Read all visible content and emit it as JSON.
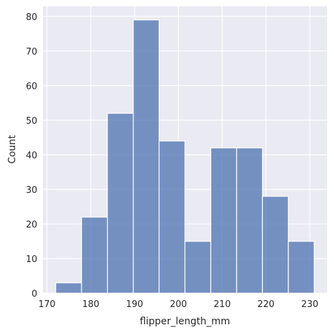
{
  "chart_data": {
    "type": "histogram",
    "x_label": "flipper_length_mm",
    "y_label": "Count",
    "bins": [
      172,
      177.9,
      183.8,
      189.7,
      195.6,
      201.5,
      207.4,
      213.3,
      219.2,
      225.1,
      231
    ],
    "values": [
      3,
      22,
      52,
      79,
      44,
      15,
      42,
      42,
      28,
      15
    ],
    "color": "#4c72b0",
    "xlim": [
      169.05,
      233.95
    ],
    "xticks": [
      170,
      180,
      190,
      200,
      210,
      220,
      230
    ],
    "ylim": [
      0,
      82.95
    ],
    "yticks": [
      0,
      10,
      20,
      30,
      40,
      50,
      60,
      70,
      80
    ],
    "grid": true
  }
}
